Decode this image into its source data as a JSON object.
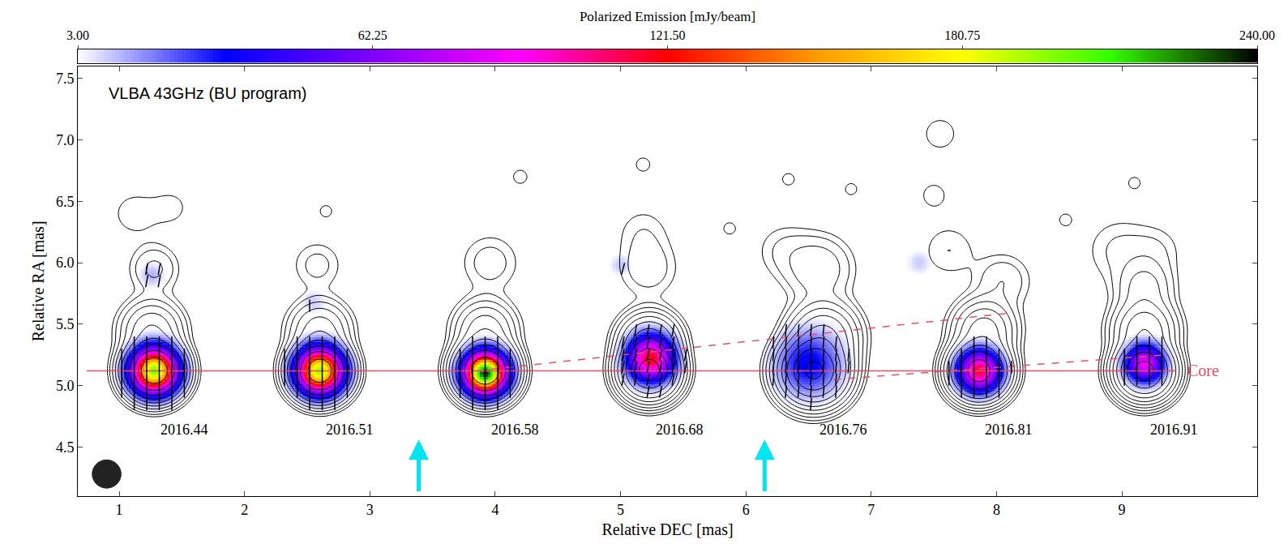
{
  "chart_data": {
    "type": "contour",
    "annotation": "VLBA 43GHz (BU program)",
    "x_label": "Relative DEC [mas]",
    "y_label": "Relative RA [mas]",
    "xlim": [
      0.67,
      10.08
    ],
    "xticks": [
      1,
      2,
      3,
      4,
      5,
      6,
      7,
      8,
      9
    ],
    "ylim": [
      4.1,
      7.6
    ],
    "yticks": [
      4.5,
      {
        "value": 5.0,
        "label": "5.0"
      },
      5.5,
      {
        "value": 6.0,
        "label": "6.0"
      },
      6.5,
      {
        "value": 7.0,
        "label": "7.0"
      },
      7.5
    ],
    "contour_levels": [
      8,
      14,
      26,
      47,
      85,
      150,
      270,
      490,
      880,
      1600
    ],
    "colorbar": {
      "title": "Polarized Emission [mJy/beam]",
      "range": [
        3,
        240
      ],
      "ticks": [
        {
          "value": 3,
          "label": "3.00"
        },
        {
          "value": 62.25,
          "label": "62.25"
        },
        {
          "value": 121.5,
          "label": "121.50"
        },
        {
          "value": 180.75,
          "label": "180.75"
        },
        {
          "value": 240,
          "label": "240.00"
        }
      ],
      "colors": [
        "#ffffff",
        "#0000ff",
        "#8000ff",
        "#ff00ff",
        "#ff0000",
        "#ff9900",
        "#ffff00",
        "#33ff00",
        "#000000"
      ]
    },
    "epochs": [
      {
        "label": "2016.44",
        "total_intensity": [
          {
            "x": 1.28,
            "y": 5.12,
            "peak": 2500,
            "sigma": 0.11
          },
          {
            "x": 1.26,
            "y": 5.45,
            "peak": 150,
            "sigma": 0.13
          },
          {
            "x": 1.28,
            "y": 5.95,
            "peak": 30,
            "sigma": 0.12
          },
          {
            "x": 1.12,
            "y": 6.4,
            "peak": 12,
            "sigma": 0.14
          },
          {
            "x": 1.42,
            "y": 6.45,
            "peak": 10,
            "sigma": 0.12
          }
        ],
        "polarized": [
          {
            "x": 1.28,
            "y": 5.12,
            "peak": 200,
            "sigma": 0.12,
            "evpa": 0
          },
          {
            "x": 1.26,
            "y": 5.9,
            "peak": 12,
            "sigma": 0.07,
            "evpa": 10
          }
        ]
      },
      {
        "label": "2016.51",
        "total_intensity": [
          {
            "x": 2.6,
            "y": 5.12,
            "peak": 2300,
            "sigma": 0.11
          },
          {
            "x": 2.6,
            "y": 5.45,
            "peak": 120,
            "sigma": 0.13
          },
          {
            "x": 2.58,
            "y": 5.98,
            "peak": 18,
            "sigma": 0.13
          },
          {
            "x": 2.65,
            "y": 6.42,
            "peak": 12,
            "sigma": 0.05
          }
        ],
        "polarized": [
          {
            "x": 2.6,
            "y": 5.12,
            "peak": 195,
            "sigma": 0.12,
            "evpa": 0
          },
          {
            "x": 2.55,
            "y": 5.68,
            "peak": 9,
            "sigma": 0.07,
            "evpa": 0
          }
        ]
      },
      {
        "label": "2016.58",
        "total_intensity": [
          {
            "x": 3.92,
            "y": 5.12,
            "peak": 2600,
            "sigma": 0.11
          },
          {
            "x": 3.92,
            "y": 5.45,
            "peak": 130,
            "sigma": 0.13
          },
          {
            "x": 3.96,
            "y": 6.0,
            "peak": 20,
            "sigma": 0.15
          },
          {
            "x": 4.2,
            "y": 6.7,
            "peak": 10,
            "sigma": 0.08
          }
        ],
        "polarized": [
          {
            "x": 3.92,
            "y": 5.1,
            "peak": 235,
            "sigma": 0.11,
            "evpa": 0
          }
        ]
      },
      {
        "label": "2016.68",
        "total_intensity": [
          {
            "x": 5.23,
            "y": 5.12,
            "peak": 2000,
            "sigma": 0.11
          },
          {
            "x": 5.23,
            "y": 5.35,
            "peak": 400,
            "sigma": 0.12
          },
          {
            "x": 5.22,
            "y": 5.95,
            "peak": 22,
            "sigma": 0.15
          },
          {
            "x": 5.18,
            "y": 6.25,
            "peak": 12,
            "sigma": 0.15
          },
          {
            "x": 5.18,
            "y": 6.8,
            "peak": 10,
            "sigma": 0.08
          },
          {
            "x": 5.87,
            "y": 6.28,
            "peak": 12,
            "sigma": 0.05
          }
        ],
        "polarized": [
          {
            "x": 5.24,
            "y": 5.22,
            "peak": 120,
            "sigma": 0.12,
            "evpa": 10
          },
          {
            "x": 5.0,
            "y": 5.98,
            "peak": 10,
            "sigma": 0.06,
            "evpa": 15
          }
        ]
      },
      {
        "label": "2016.76",
        "total_intensity": [
          {
            "x": 6.54,
            "y": 5.12,
            "peak": 1800,
            "sigma": 0.13
          },
          {
            "x": 6.62,
            "y": 5.4,
            "peak": 300,
            "sigma": 0.14
          },
          {
            "x": 6.58,
            "y": 5.95,
            "peak": 45,
            "sigma": 0.16
          },
          {
            "x": 6.3,
            "y": 6.1,
            "peak": 14,
            "sigma": 0.15
          },
          {
            "x": 6.34,
            "y": 6.68,
            "peak": 10,
            "sigma": 0.07
          },
          {
            "x": 6.84,
            "y": 6.6,
            "peak": 12,
            "sigma": 0.05
          }
        ],
        "polarized": [
          {
            "x": 6.5,
            "y": 5.18,
            "peak": 35,
            "sigma": 0.18,
            "evpa": 5
          }
        ]
      },
      {
        "label": "2016.81",
        "total_intensity": [
          {
            "x": 7.86,
            "y": 5.12,
            "peak": 2200,
            "sigma": 0.11
          },
          {
            "x": 7.9,
            "y": 5.45,
            "peak": 200,
            "sigma": 0.13
          },
          {
            "x": 8.05,
            "y": 5.85,
            "peak": 25,
            "sigma": 0.14
          },
          {
            "x": 7.62,
            "y": 6.1,
            "peak": 14,
            "sigma": 0.15
          },
          {
            "x": 7.5,
            "y": 6.55,
            "peak": 11,
            "sigma": 0.1
          },
          {
            "x": 7.55,
            "y": 7.05,
            "peak": 12,
            "sigma": 0.12
          },
          {
            "x": 8.55,
            "y": 6.35,
            "peak": 12,
            "sigma": 0.05
          }
        ],
        "polarized": [
          {
            "x": 7.86,
            "y": 5.12,
            "peak": 115,
            "sigma": 0.11,
            "evpa": 0
          },
          {
            "x": 7.38,
            "y": 6.0,
            "peak": 9,
            "sigma": 0.07,
            "evpa": 20
          }
        ]
      },
      {
        "label": "2016.91",
        "total_intensity": [
          {
            "x": 9.18,
            "y": 5.12,
            "peak": 2000,
            "sigma": 0.11
          },
          {
            "x": 9.18,
            "y": 5.45,
            "peak": 250,
            "sigma": 0.13
          },
          {
            "x": 9.18,
            "y": 5.8,
            "peak": 60,
            "sigma": 0.13
          },
          {
            "x": 8.98,
            "y": 6.1,
            "peak": 16,
            "sigma": 0.18
          },
          {
            "x": 9.28,
            "y": 6.1,
            "peak": 12,
            "sigma": 0.14
          },
          {
            "x": 9.1,
            "y": 6.65,
            "peak": 12,
            "sigma": 0.05
          }
        ],
        "polarized": [
          {
            "x": 9.18,
            "y": 5.18,
            "peak": 90,
            "sigma": 0.1,
            "evpa": 0
          }
        ]
      }
    ],
    "core": {
      "label": "Core",
      "y": 5.12,
      "x": [
        0.74,
        9.43
      ],
      "color": "#e8506a"
    },
    "tracks": {
      "color": "#e8506a",
      "line_style": "dashed",
      "lines": [
        {
          "x": [
            3.85,
            8.1
          ],
          "y": [
            5.12,
            5.59
          ]
        },
        {
          "x": [
            6.7,
            9.35
          ],
          "y": [
            5.05,
            5.25
          ]
        }
      ]
    },
    "arrows": {
      "color": "#00e5ee",
      "x": [
        3.39,
        6.15
      ]
    },
    "beam": {
      "x": 0.9,
      "y": 4.28,
      "diameter": 0.23,
      "color": "#222222"
    }
  }
}
